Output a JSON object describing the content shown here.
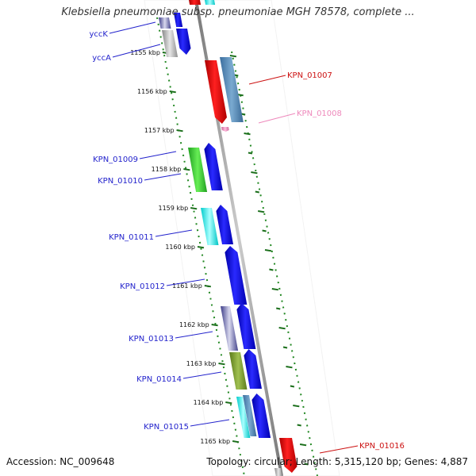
{
  "title": "Klebsiella pneumoniae subsp. pneumoniae MGH 78578, complete ...",
  "footer": {
    "accession": "Accession: NC_009648",
    "topology": "Topology: circular; Length: 5,315,120 bp; Genes: 4,887"
  },
  "ticks": [
    {
      "kbp": 1155,
      "label": "1155 kbp"
    },
    {
      "kbp": 1156,
      "label": "1156 kbp"
    },
    {
      "kbp": 1157,
      "label": "1157 kbp"
    },
    {
      "kbp": 1158,
      "label": "1158 kbp"
    },
    {
      "kbp": 1159,
      "label": "1159 kbp"
    },
    {
      "kbp": 1160,
      "label": "1160 kbp"
    },
    {
      "kbp": 1161,
      "label": "1161 kbp"
    },
    {
      "kbp": 1162,
      "label": "1162 kbp"
    },
    {
      "kbp": 1163,
      "label": "1163 kbp"
    },
    {
      "kbp": 1164,
      "label": "1164 kbp"
    },
    {
      "kbp": 1165,
      "label": "1165 kbp"
    }
  ],
  "genes": [
    {
      "name": "yccK",
      "color": "#2222cc"
    },
    {
      "name": "yccA",
      "color": "#2222cc"
    },
    {
      "name": "KPN_01007",
      "color": "#cc1111"
    },
    {
      "name": "KPN_01008",
      "color": "#ee88bb"
    },
    {
      "name": "KPN_01009",
      "color": "#2222cc"
    },
    {
      "name": "KPN_01010",
      "color": "#2222cc"
    },
    {
      "name": "KPN_01011",
      "color": "#2222cc"
    },
    {
      "name": "KPN_01012",
      "color": "#2222cc"
    },
    {
      "name": "KPN_01013",
      "color": "#2222cc"
    },
    {
      "name": "KPN_01014",
      "color": "#2222cc"
    },
    {
      "name": "KPN_01015",
      "color": "#2222cc"
    },
    {
      "name": "KPN_01016",
      "color": "#cc1111"
    }
  ]
}
